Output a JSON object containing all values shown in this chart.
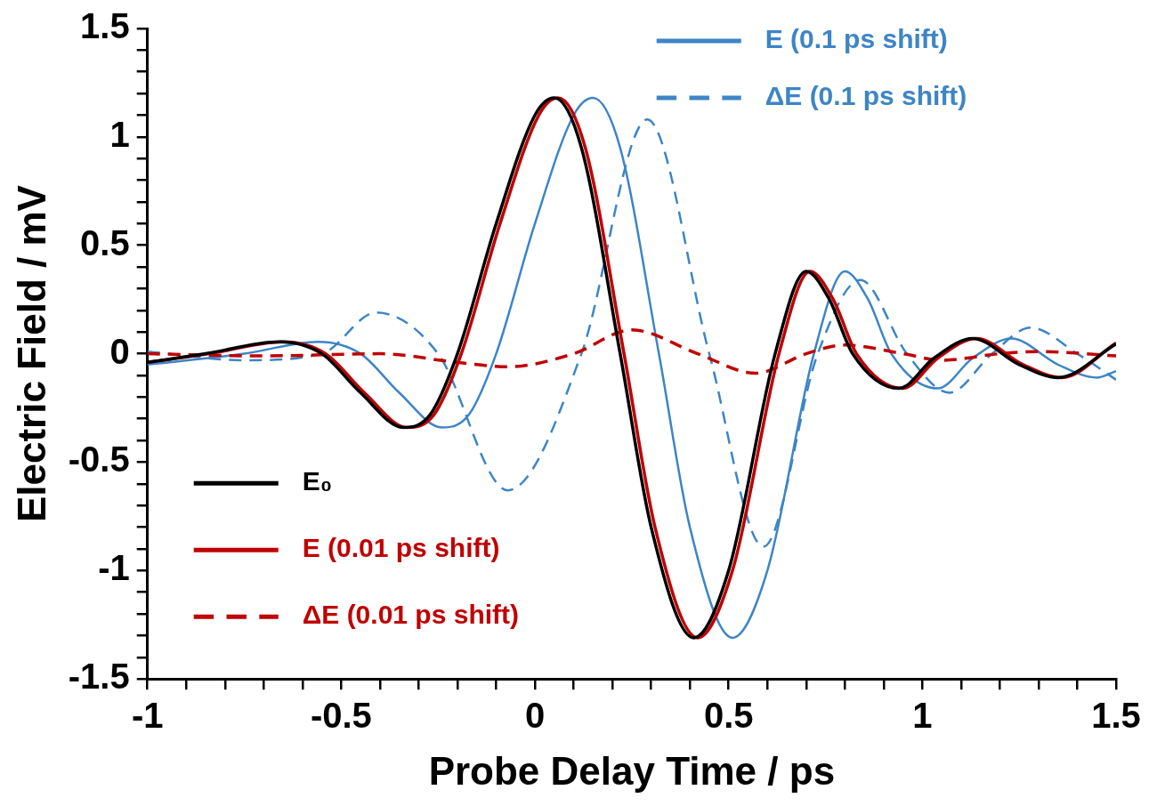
{
  "chart_data": {
    "type": "line",
    "xlabel": "Probe Delay Time / ps",
    "ylabel": "Electric Field / mV",
    "xlim": [
      -1,
      1.5
    ],
    "ylim": [
      -1.5,
      1.5
    ],
    "xticks": [
      -1,
      {
        "value": -0.9,
        "label": null
      },
      {
        "value": -0.8,
        "label": null
      },
      {
        "value": -0.7,
        "label": null
      },
      {
        "value": -0.6,
        "label": null
      },
      -0.5,
      {
        "value": -0.4,
        "label": null
      },
      {
        "value": -0.3,
        "label": null
      },
      {
        "value": -0.2,
        "label": null
      },
      {
        "value": -0.1,
        "label": null
      },
      0,
      {
        "value": 0.1,
        "label": null
      },
      {
        "value": 0.2,
        "label": null
      },
      {
        "value": 0.3,
        "label": null
      },
      {
        "value": 0.4,
        "label": null
      },
      0.5,
      {
        "value": 0.6,
        "label": null
      },
      {
        "value": 0.7,
        "label": null
      },
      {
        "value": 0.8,
        "label": null
      },
      {
        "value": 0.9,
        "label": null
      },
      1,
      {
        "value": 1.1,
        "label": null
      },
      {
        "value": 1.2,
        "label": null
      },
      {
        "value": 1.3,
        "label": null
      },
      {
        "value": 1.4,
        "label": null
      },
      1.5
    ],
    "yticks": [
      -1.5,
      {
        "value": -1.4,
        "label": null
      },
      {
        "value": -1.3,
        "label": null
      },
      {
        "value": -1.2,
        "label": null
      },
      {
        "value": -1.1,
        "label": null
      },
      -1,
      {
        "value": -0.9,
        "label": null
      },
      {
        "value": -0.8,
        "label": null
      },
      {
        "value": -0.7,
        "label": null
      },
      {
        "value": -0.6,
        "label": null
      },
      -0.5,
      {
        "value": -0.4,
        "label": null
      },
      {
        "value": -0.3,
        "label": null
      },
      {
        "value": -0.2,
        "label": null
      },
      {
        "value": -0.1,
        "label": null
      },
      0,
      {
        "value": 0.1,
        "label": null
      },
      {
        "value": 0.2,
        "label": null
      },
      {
        "value": 0.3,
        "label": null
      },
      {
        "value": 0.4,
        "label": null
      },
      0.5,
      {
        "value": 0.6,
        "label": null
      },
      {
        "value": 0.7,
        "label": null
      },
      {
        "value": 0.8,
        "label": null
      },
      {
        "value": 0.9,
        "label": null
      },
      1,
      {
        "value": 1.1,
        "label": null
      },
      {
        "value": 1.2,
        "label": null
      },
      {
        "value": 1.3,
        "label": null
      },
      {
        "value": 1.4,
        "label": null
      },
      1.5
    ],
    "grid": false,
    "legend": "top left",
    "marker": "none",
    "series": [
      {
        "name": "E₀",
        "color": "#000000",
        "line_style": "solid",
        "x": [
          -1,
          -0.85,
          -0.66,
          -0.55,
          -0.45,
          -0.34,
          -0.27,
          -0.2,
          -0.1,
          0,
          0.05,
          0.12,
          0.22,
          0.3,
          0.41,
          0.5,
          0.62,
          0.7,
          0.76,
          0.82,
          0.94,
          1.03,
          1.13,
          1.25,
          1.35,
          1.5
        ],
        "values": [
          -0.04,
          0,
          0.055,
          0,
          -0.18,
          -0.34,
          -0.28,
          0,
          0.6,
          1.1,
          1.18,
          0.95,
          0,
          -0.8,
          -1.31,
          -1,
          0,
          0.38,
          0.25,
          0,
          -0.16,
          -0.02,
          0.07,
          -0.05,
          -0.11,
          0.045
        ]
      },
      {
        "name": "E (0.01 ps shift)",
        "color": "#c00000",
        "line_style": "solid",
        "x": [
          -1,
          -0.84,
          -0.65,
          -0.54,
          -0.44,
          -0.33,
          -0.26,
          -0.19,
          -0.09,
          0.01,
          0.06,
          0.13,
          0.23,
          0.31,
          0.42,
          0.51,
          0.63,
          0.71,
          0.77,
          0.83,
          0.95,
          1.04,
          1.14,
          1.26,
          1.36,
          1.5
        ],
        "values": [
          -0.04,
          0,
          0.055,
          0,
          -0.18,
          -0.34,
          -0.28,
          0,
          0.6,
          1.1,
          1.18,
          0.95,
          0,
          -0.8,
          -1.31,
          -1,
          0,
          0.38,
          0.25,
          0,
          -0.16,
          -0.02,
          0.07,
          -0.05,
          -0.11,
          0.05
        ]
      },
      {
        "name": "ΔE (0.01 ps shift)",
        "color": "#c00000",
        "line_style": "dashed",
        "x": [
          -1,
          -0.7,
          -0.4,
          -0.2,
          -0.07,
          0.1,
          0.25,
          0.42,
          0.57,
          0.7,
          0.8,
          0.95,
          1.05,
          1.2,
          1.3,
          1.5
        ],
        "values": [
          0,
          -0.01,
          0,
          -0.04,
          -0.06,
          0,
          0.11,
          0,
          -0.09,
          0,
          0.04,
          0,
          -0.03,
          0,
          0.01,
          -0.01
        ]
      },
      {
        "name": "E (0.1 ps shift)",
        "color": "#3d85c6",
        "line_style": "solid",
        "x": [
          -1,
          -0.75,
          -0.56,
          -0.45,
          -0.35,
          -0.24,
          -0.17,
          -0.1,
          0,
          0.1,
          0.15,
          0.22,
          0.32,
          0.4,
          0.51,
          0.6,
          0.72,
          0.8,
          0.86,
          0.92,
          1.04,
          1.13,
          1.23,
          1.35,
          1.45,
          1.5
        ],
        "values": [
          -0.05,
          0,
          0.055,
          0,
          -0.18,
          -0.34,
          -0.28,
          0,
          0.6,
          1.1,
          1.18,
          0.95,
          0,
          -0.8,
          -1.31,
          -1,
          0,
          0.38,
          0.25,
          0,
          -0.16,
          -0.02,
          0.07,
          -0.05,
          -0.11,
          -0.08
        ]
      },
      {
        "name": "ΔE (0.1 ps shift)",
        "color": "#3d85c6",
        "line_style": "dashed",
        "x": [
          -1,
          -0.75,
          -0.55,
          -0.41,
          -0.25,
          -0.07,
          0.12,
          0.29,
          0.45,
          0.59,
          0.73,
          0.84,
          0.96,
          1.07,
          1.18,
          1.28,
          1.4,
          1.5
        ],
        "values": [
          0.01,
          -0.03,
          0,
          0.19,
          0,
          -0.63,
          0,
          1.08,
          0,
          -0.89,
          0,
          0.34,
          0,
          -0.18,
          0,
          0.12,
          0,
          -0.12
        ]
      }
    ]
  }
}
